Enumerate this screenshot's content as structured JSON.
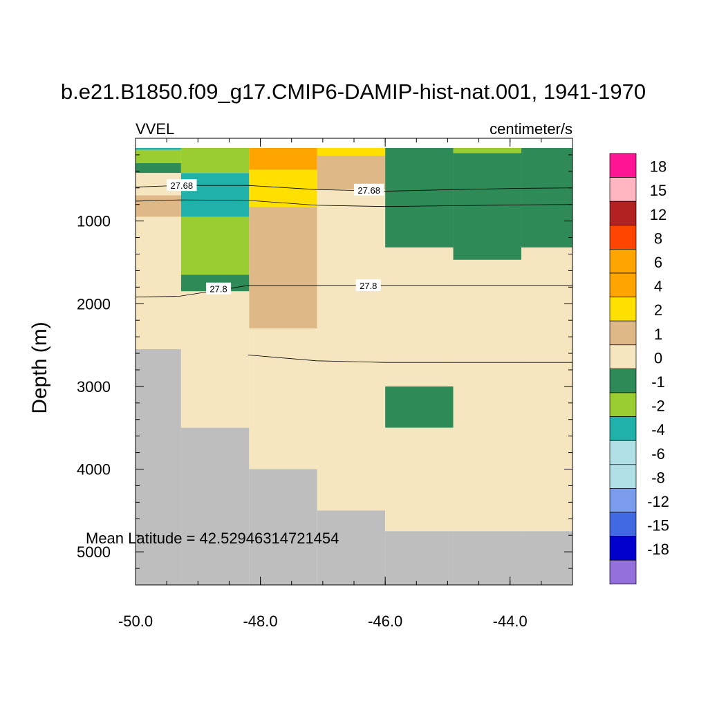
{
  "chart_data": {
    "type": "heatmap",
    "title": "b.e21.B1850.f09_g17.CMIP6-DAMIP-hist-nat.001, 1941-1970",
    "left_string": "VVEL",
    "right_string": "centimeter/s",
    "ylabel": "Depth (m)",
    "xlabel": "",
    "xlim": [
      -50.0,
      -43.0
    ],
    "ylim": [
      5400,
      0
    ],
    "x_ticks": [
      "-50.0",
      "-48.0",
      "-46.0",
      "-44.0"
    ],
    "x_tick_values": [
      -50.0,
      -48.0,
      -46.0,
      -44.0
    ],
    "y_ticks": [
      "1000",
      "2000",
      "3000",
      "4000",
      "5000"
    ],
    "y_tick_values": [
      1000,
      2000,
      3000,
      4000,
      5000
    ],
    "annotation": "Mean Latitude = 42.52946314721454",
    "colorbar_labels": [
      "18",
      "15",
      "12",
      "8",
      "6",
      "4",
      "2",
      "1",
      "0",
      "-1",
      "-2",
      "-4",
      "-6",
      "-8",
      "-12",
      "-15",
      "-18"
    ],
    "colorbar_colors": [
      "#ff1493",
      "#ffb6c1",
      "#b22222",
      "#ff4500",
      "#ffa500",
      "#ffa500",
      "#ffe000",
      "#deb887",
      "#f5e6c0",
      "#2e8b57",
      "#9acd32",
      "#20b2aa",
      "#b0e0e6",
      "#b0e0e6",
      "#7b9ced",
      "#4169e1",
      "#0000cd",
      "#9370db"
    ],
    "missing_color": "#bebebe",
    "contours": [
      {
        "label": "27.68",
        "points": [
          [
            -50.0,
            590
          ],
          [
            -49.3,
            570
          ],
          [
            -48.2,
            570
          ],
          [
            -47.1,
            620
          ],
          [
            -46.0,
            640
          ],
          [
            -44.9,
            620
          ],
          [
            -43.8,
            605
          ],
          [
            -43.0,
            600
          ]
        ],
        "label_points": [
          [
            -49.26,
            570
          ],
          [
            -46.26,
            625
          ]
        ]
      },
      {
        "label": "",
        "points": [
          [
            -50.0,
            760
          ],
          [
            -49.3,
            745
          ],
          [
            -48.2,
            750
          ],
          [
            -47.1,
            810
          ],
          [
            -46.0,
            825
          ],
          [
            -44.9,
            815
          ],
          [
            -43.8,
            805
          ],
          [
            -43.0,
            800
          ]
        ],
        "label_points": []
      },
      {
        "label": "27.8",
        "points": [
          [
            -50.0,
            1920
          ],
          [
            -49.3,
            1910
          ],
          [
            -48.2,
            1780
          ],
          [
            -47.1,
            1780
          ],
          [
            -46.0,
            1780
          ],
          [
            -43.0,
            1780
          ]
        ],
        "label_points": [
          [
            -48.67,
            1820
          ],
          [
            -46.27,
            1780
          ]
        ]
      },
      {
        "label": "",
        "points": [
          [
            -48.2,
            2620
          ],
          [
            -47.1,
            2690
          ],
          [
            -46.0,
            2710
          ],
          [
            -43.0,
            2710
          ]
        ],
        "label_points": []
      }
    ],
    "cells": [
      {
        "x": [
          -50.0,
          -49.27
        ],
        "y": [
          0,
          140
        ],
        "v": -3
      },
      {
        "x": [
          -50.0,
          -49.27
        ],
        "y": [
          140,
          300
        ],
        "v": -1.5
      },
      {
        "x": [
          -50.0,
          -49.27
        ],
        "y": [
          300,
          420
        ],
        "v": -0.5
      },
      {
        "x": [
          -50.0,
          -49.27
        ],
        "y": [
          420,
          690
        ],
        "v": 0.5
      },
      {
        "x": [
          -50.0,
          -49.27
        ],
        "y": [
          690,
          950
        ],
        "v": 1.5
      },
      {
        "x": [
          -50.0,
          -49.27
        ],
        "y": [
          950,
          2550
        ],
        "v": 0.5
      },
      {
        "x": [
          -50.0,
          -49.27
        ],
        "y": [
          2550,
          5400
        ],
        "missing": true
      },
      {
        "x": [
          -49.27,
          -48.18
        ],
        "y": [
          0,
          420
        ],
        "v": -1.5
      },
      {
        "x": [
          -49.27,
          -48.18
        ],
        "y": [
          420,
          950
        ],
        "v": -3
      },
      {
        "x": [
          -49.27,
          -48.18
        ],
        "y": [
          950,
          1650
        ],
        "v": -1.5
      },
      {
        "x": [
          -49.27,
          -48.18
        ],
        "y": [
          1650,
          1850
        ],
        "v": -0.5
      },
      {
        "x": [
          -49.27,
          -48.18
        ],
        "y": [
          1850,
          3500
        ],
        "v": 0.5
      },
      {
        "x": [
          -49.27,
          -48.18
        ],
        "y": [
          3500,
          5400
        ],
        "missing": true
      },
      {
        "x": [
          -48.18,
          -47.09
        ],
        "y": [
          0,
          380
        ],
        "v": 5
      },
      {
        "x": [
          -48.18,
          -47.09
        ],
        "y": [
          380,
          830
        ],
        "v": 3
      },
      {
        "x": [
          -48.18,
          -47.09
        ],
        "y": [
          830,
          2300
        ],
        "v": 1.5
      },
      {
        "x": [
          -48.18,
          -47.09
        ],
        "y": [
          2300,
          4000
        ],
        "v": 0.5
      },
      {
        "x": [
          -48.18,
          -47.09
        ],
        "y": [
          4000,
          5400
        ],
        "missing": true
      },
      {
        "x": [
          -47.09,
          -46.0
        ],
        "y": [
          0,
          100
        ],
        "v": 1.5
      },
      {
        "x": [
          -47.09,
          -46.0
        ],
        "y": [
          100,
          210
        ],
        "v": 3
      },
      {
        "x": [
          -47.09,
          -46.0
        ],
        "y": [
          210,
          620
        ],
        "v": 1.5
      },
      {
        "x": [
          -47.09,
          -46.0
        ],
        "y": [
          620,
          4500
        ],
        "v": 0.5
      },
      {
        "x": [
          -47.09,
          -46.0
        ],
        "y": [
          4500,
          5400
        ],
        "missing": true
      },
      {
        "x": [
          -46.0,
          -44.91
        ],
        "y": [
          0,
          80
        ],
        "v": -1.5
      },
      {
        "x": [
          -46.0,
          -44.91
        ],
        "y": [
          80,
          1320
        ],
        "v": -0.5
      },
      {
        "x": [
          -46.0,
          -44.91
        ],
        "y": [
          1320,
          3000
        ],
        "v": 0.5
      },
      {
        "x": [
          -46.0,
          -44.91
        ],
        "y": [
          3000,
          3500
        ],
        "v": -0.5
      },
      {
        "x": [
          -46.0,
          -44.91
        ],
        "y": [
          3500,
          4750
        ],
        "v": 0.5
      },
      {
        "x": [
          -46.0,
          -44.91
        ],
        "y": [
          4750,
          5400
        ],
        "missing": true
      },
      {
        "x": [
          -44.91,
          -43.82
        ],
        "y": [
          0,
          180
        ],
        "v": -1.5
      },
      {
        "x": [
          -44.91,
          -43.82
        ],
        "y": [
          180,
          1470
        ],
        "v": -0.5
      },
      {
        "x": [
          -44.91,
          -43.82
        ],
        "y": [
          1470,
          4750
        ],
        "v": 0.5
      },
      {
        "x": [
          -44.91,
          -43.82
        ],
        "y": [
          4750,
          5400
        ],
        "missing": true
      },
      {
        "x": [
          -43.82,
          -43.0
        ],
        "y": [
          0,
          50
        ],
        "v": -1.5
      },
      {
        "x": [
          -43.82,
          -43.0
        ],
        "y": [
          50,
          1320
        ],
        "v": -0.5
      },
      {
        "x": [
          -43.82,
          -43.0
        ],
        "y": [
          1320,
          4750
        ],
        "v": 0.5
      },
      {
        "x": [
          -43.82,
          -43.0
        ],
        "y": [
          4750,
          5400
        ],
        "missing": true
      }
    ]
  }
}
